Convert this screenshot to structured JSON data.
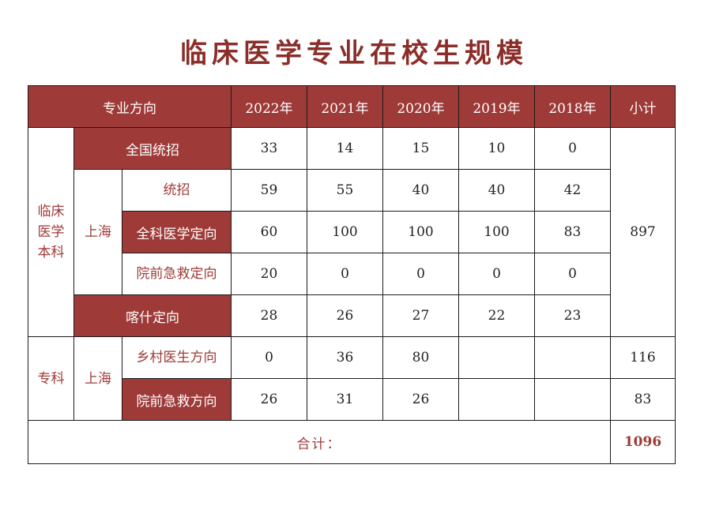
{
  "title": "临床医学专业在校生规模",
  "headers": {
    "direction": "专业方向",
    "y2022": "2022年",
    "y2021": "2021年",
    "y2020": "2020年",
    "y2019": "2019年",
    "y2018": "2018年",
    "subtotal": "小计"
  },
  "groups": {
    "undergrad": "临床医学本科",
    "undergrad_lines": [
      "临床",
      "医学",
      "本科"
    ],
    "shanghai": "上海",
    "junior": "专科",
    "junior_shanghai": "上海"
  },
  "rows": [
    {
      "label": "全国统招",
      "v2022": "33",
      "v2021": "14",
      "v2020": "15",
      "v2019": "10",
      "v2018": "0"
    },
    {
      "label": "统招",
      "v2022": "59",
      "v2021": "55",
      "v2020": "40",
      "v2019": "40",
      "v2018": "42"
    },
    {
      "label": "全科医学定向",
      "v2022": "60",
      "v2021": "100",
      "v2020": "100",
      "v2019": "100",
      "v2018": "83"
    },
    {
      "label": "院前急救定向",
      "v2022": "20",
      "v2021": "0",
      "v2020": "0",
      "v2019": "0",
      "v2018": "0"
    },
    {
      "label": "喀什定向",
      "v2022": "28",
      "v2021": "26",
      "v2020": "27",
      "v2019": "22",
      "v2018": "23"
    },
    {
      "label": "乡村医生方向",
      "v2022": "0",
      "v2021": "36",
      "v2020": "80",
      "v2019": "",
      "v2018": ""
    },
    {
      "label": "院前急救方向",
      "v2022": "26",
      "v2021": "31",
      "v2020": "26",
      "v2019": "",
      "v2018": ""
    }
  ],
  "subtotals": {
    "undergrad": "897",
    "rural": "116",
    "emergency": "83"
  },
  "total": {
    "label": "合计：",
    "value": "1096"
  }
}
